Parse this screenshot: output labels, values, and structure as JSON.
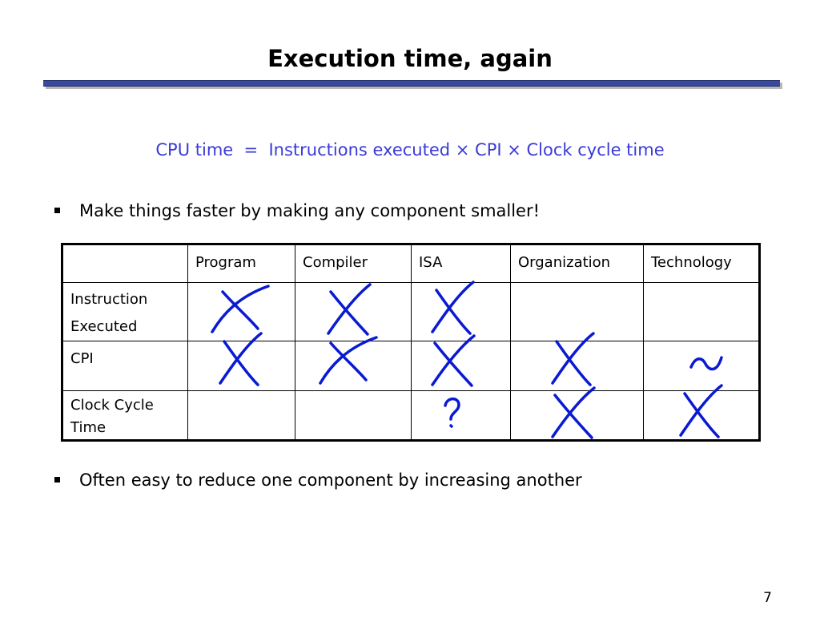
{
  "slide": {
    "title": "Execution time, again",
    "formula": "CPU time  =  Instructions executed × CPI × Clock cycle time",
    "bullets": [
      "Make things faster by making any component smaller!",
      "Often easy to reduce one component by increasing another"
    ],
    "page_number": "7"
  },
  "table": {
    "header": [
      "",
      "Program",
      "Compiler",
      "ISA",
      "Organization",
      "Technology"
    ],
    "rows": [
      {
        "label_lines": [
          "Instruction",
          "Executed"
        ],
        "marks": [
          "X",
          "X",
          "X",
          "",
          ""
        ]
      },
      {
        "label_lines": [
          "CPI"
        ],
        "marks": [
          "X",
          "X",
          "X",
          "X",
          "~"
        ]
      },
      {
        "label_lines": [
          "Clock Cycle",
          "Time"
        ],
        "marks": [
          "",
          "",
          "?",
          "X",
          "X"
        ]
      }
    ]
  },
  "colors": {
    "formula_text": "#3a3ad8",
    "handwriting_ink": "#0a1ad2",
    "title_bar": "#3a4a9c"
  }
}
